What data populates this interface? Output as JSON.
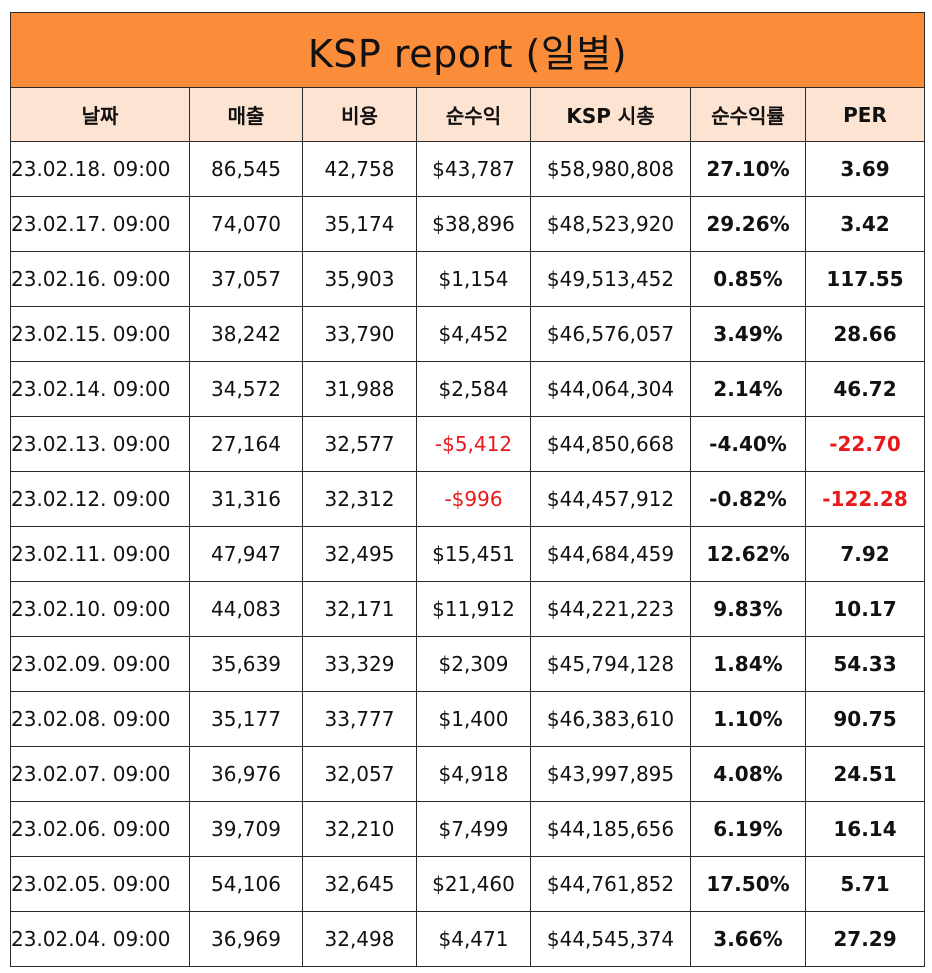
{
  "title": "KSP report (일별)",
  "colors": {
    "title_bg": "#fb8c3a",
    "header_bg": "#fde3d2",
    "negative": "#e8191b"
  },
  "headers": [
    "날짜",
    "매출",
    "비용",
    "순수익",
    "KSP 시총",
    "순수익률",
    "PER"
  ],
  "rows": [
    [
      "23.02.18. 09:00",
      "86,545",
      "42,758",
      "$43,787",
      "$58,980,808",
      "27.10%",
      "3.69"
    ],
    [
      "23.02.17. 09:00",
      "74,070",
      "35,174",
      "$38,896",
      "$48,523,920",
      "29.26%",
      "3.42"
    ],
    [
      "23.02.16. 09:00",
      "37,057",
      "35,903",
      "$1,154",
      "$49,513,452",
      "0.85%",
      "117.55"
    ],
    [
      "23.02.15. 09:00",
      "38,242",
      "33,790",
      "$4,452",
      "$46,576,057",
      "3.49%",
      "28.66"
    ],
    [
      "23.02.14. 09:00",
      "34,572",
      "31,988",
      "$2,584",
      "$44,064,304",
      "2.14%",
      "46.72"
    ],
    [
      "23.02.13. 09:00",
      "27,164",
      "32,577",
      "-$5,412",
      "$44,850,668",
      "-4.40%",
      "-22.70"
    ],
    [
      "23.02.12. 09:00",
      "31,316",
      "32,312",
      "-$996",
      "$44,457,912",
      "-0.82%",
      "-122.28"
    ],
    [
      "23.02.11. 09:00",
      "47,947",
      "32,495",
      "$15,451",
      "$44,684,459",
      "12.62%",
      "7.92"
    ],
    [
      "23.02.10. 09:00",
      "44,083",
      "32,171",
      "$11,912",
      "$44,221,223",
      "9.83%",
      "10.17"
    ],
    [
      "23.02.09. 09:00",
      "35,639",
      "33,329",
      "$2,309",
      "$45,794,128",
      "1.84%",
      "54.33"
    ],
    [
      "23.02.08. 09:00",
      "35,177",
      "33,777",
      "$1,400",
      "$46,383,610",
      "1.10%",
      "90.75"
    ],
    [
      "23.02.07. 09:00",
      "36,976",
      "32,057",
      "$4,918",
      "$43,997,895",
      "4.08%",
      "24.51"
    ],
    [
      "23.02.06. 09:00",
      "39,709",
      "32,210",
      "$7,499",
      "$44,185,656",
      "6.19%",
      "16.14"
    ],
    [
      "23.02.05. 09:00",
      "54,106",
      "32,645",
      "$21,460",
      "$44,761,852",
      "17.50%",
      "5.71"
    ],
    [
      "23.02.04. 09:00",
      "36,969",
      "32,498",
      "$4,471",
      "$44,545,374",
      "3.66%",
      "27.29"
    ]
  ]
}
